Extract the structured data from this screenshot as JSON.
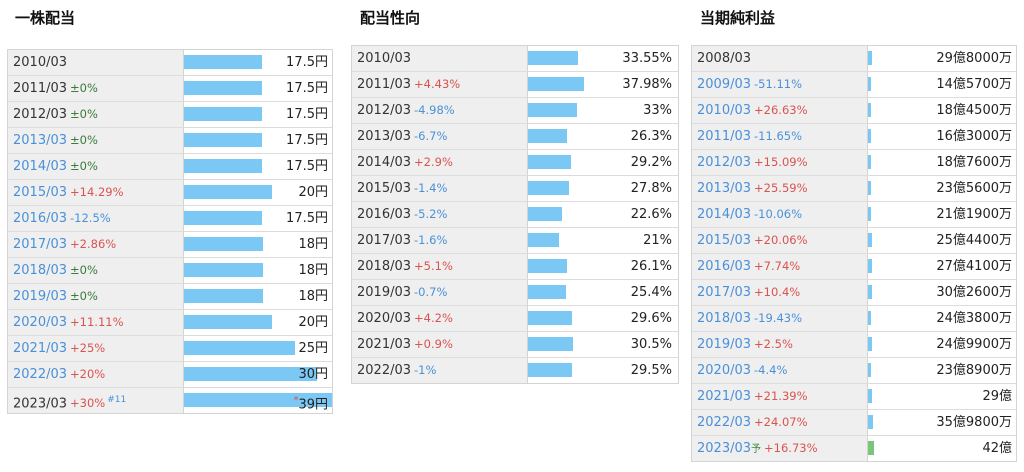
{
  "sections": {
    "dividend": {
      "title": "一株配当",
      "rows": [
        {
          "year": "2010/03",
          "change": "",
          "change_type": "",
          "value": "17.5円",
          "bar": 0.525,
          "link": false
        },
        {
          "year": "2011/03",
          "change": "±0%",
          "change_type": "zero",
          "value": "17.5円",
          "bar": 0.525,
          "link": false
        },
        {
          "year": "2012/03",
          "change": "±0%",
          "change_type": "zero",
          "value": "17.5円",
          "bar": 0.525,
          "link": false
        },
        {
          "year": "2013/03",
          "change": "±0%",
          "change_type": "zero",
          "value": "17.5円",
          "bar": 0.525,
          "link": true
        },
        {
          "year": "2014/03",
          "change": "±0%",
          "change_type": "zero",
          "value": "17.5円",
          "bar": 0.525,
          "link": true
        },
        {
          "year": "2015/03",
          "change": "+14.29%",
          "change_type": "pos",
          "value": "20円",
          "bar": 0.595,
          "link": true
        },
        {
          "year": "2016/03",
          "change": "-12.5%",
          "change_type": "neg",
          "value": "17.5円",
          "bar": 0.525,
          "link": true
        },
        {
          "year": "2017/03",
          "change": "+2.86%",
          "change_type": "pos",
          "value": "18円",
          "bar": 0.535,
          "link": true
        },
        {
          "year": "2018/03",
          "change": "±0%",
          "change_type": "zero",
          "value": "18円",
          "bar": 0.535,
          "link": true
        },
        {
          "year": "2019/03",
          "change": "±0%",
          "change_type": "zero",
          "value": "18円",
          "bar": 0.535,
          "link": true
        },
        {
          "year": "2020/03",
          "change": "+11.11%",
          "change_type": "pos",
          "value": "20円",
          "bar": 0.595,
          "link": true
        },
        {
          "year": "2021/03",
          "change": "+25%",
          "change_type": "pos",
          "value": "25円",
          "bar": 0.75,
          "link": true
        },
        {
          "year": "2022/03",
          "change": "+20%",
          "change_type": "pos",
          "value": "30円",
          "bar": 0.9,
          "link": true
        },
        {
          "year": "2023/03",
          "change": "+30%",
          "change_type": "pos",
          "value": "39円",
          "bar": 1.0,
          "link": false,
          "note": "#11",
          "star": "*"
        }
      ]
    },
    "payout": {
      "title": "配当性向",
      "rows": [
        {
          "year": "2010/03",
          "change": "",
          "change_type": "",
          "value": "33.55%",
          "bar": 0.885,
          "link": false
        },
        {
          "year": "2011/03",
          "change": "+4.43%",
          "change_type": "pos",
          "value": "37.98%",
          "bar": 1.0,
          "link": false
        },
        {
          "year": "2012/03",
          "change": "-4.98%",
          "change_type": "neg",
          "value": "33%",
          "bar": 0.87,
          "link": false
        },
        {
          "year": "2013/03",
          "change": "-6.7%",
          "change_type": "neg",
          "value": "26.3%",
          "bar": 0.695,
          "link": false
        },
        {
          "year": "2014/03",
          "change": "+2.9%",
          "change_type": "pos",
          "value": "29.2%",
          "bar": 0.77,
          "link": false
        },
        {
          "year": "2015/03",
          "change": "-1.4%",
          "change_type": "neg",
          "value": "27.8%",
          "bar": 0.735,
          "link": false
        },
        {
          "year": "2016/03",
          "change": "-5.2%",
          "change_type": "neg",
          "value": "22.6%",
          "bar": 0.6,
          "link": false
        },
        {
          "year": "2017/03",
          "change": "-1.6%",
          "change_type": "neg",
          "value": "21%",
          "bar": 0.555,
          "link": false
        },
        {
          "year": "2018/03",
          "change": "+5.1%",
          "change_type": "pos",
          "value": "26.1%",
          "bar": 0.69,
          "link": false
        },
        {
          "year": "2019/03",
          "change": "-0.7%",
          "change_type": "neg",
          "value": "25.4%",
          "bar": 0.67,
          "link": false
        },
        {
          "year": "2020/03",
          "change": "+4.2%",
          "change_type": "pos",
          "value": "29.6%",
          "bar": 0.78,
          "link": false
        },
        {
          "year": "2021/03",
          "change": "+0.9%",
          "change_type": "pos",
          "value": "30.5%",
          "bar": 0.805,
          "link": false
        },
        {
          "year": "2022/03",
          "change": "-1%",
          "change_type": "neg",
          "value": "29.5%",
          "bar": 0.78,
          "link": false
        }
      ]
    },
    "netincome": {
      "title": "当期純利益",
      "rows": [
        {
          "year": "2008/03",
          "change": "",
          "change_type": "",
          "value": "29億8000万",
          "bar": 0.71,
          "link": false
        },
        {
          "year": "2009/03",
          "change": "-51.11%",
          "change_type": "neg",
          "value": "14億5700万",
          "bar": 0.35,
          "link": true
        },
        {
          "year": "2010/03",
          "change": "+26.63%",
          "change_type": "pos",
          "value": "18億4500万",
          "bar": 0.44,
          "link": true
        },
        {
          "year": "2011/03",
          "change": "-11.65%",
          "change_type": "neg",
          "value": "16億3000万",
          "bar": 0.39,
          "link": true
        },
        {
          "year": "2012/03",
          "change": "+15.09%",
          "change_type": "pos",
          "value": "18億7600万",
          "bar": 0.45,
          "link": true
        },
        {
          "year": "2013/03",
          "change": "+25.59%",
          "change_type": "pos",
          "value": "23億5600万",
          "bar": 0.56,
          "link": true
        },
        {
          "year": "2014/03",
          "change": "-10.06%",
          "change_type": "neg",
          "value": "21億1900万",
          "bar": 0.5,
          "link": true
        },
        {
          "year": "2015/03",
          "change": "+20.06%",
          "change_type": "pos",
          "value": "25億4400万",
          "bar": 0.61,
          "link": true
        },
        {
          "year": "2016/03",
          "change": "+7.74%",
          "change_type": "pos",
          "value": "27億4100万",
          "bar": 0.65,
          "link": true
        },
        {
          "year": "2017/03",
          "change": "+10.4%",
          "change_type": "pos",
          "value": "30億2600万",
          "bar": 0.72,
          "link": true
        },
        {
          "year": "2018/03",
          "change": "-19.43%",
          "change_type": "neg",
          "value": "24億3800万",
          "bar": 0.58,
          "link": true
        },
        {
          "year": "2019/03",
          "change": "+2.5%",
          "change_type": "pos",
          "value": "24億9900万",
          "bar": 0.6,
          "link": true
        },
        {
          "year": "2020/03",
          "change": "-4.4%",
          "change_type": "neg",
          "value": "23億8900万",
          "bar": 0.57,
          "link": true
        },
        {
          "year": "2021/03",
          "change": "+21.39%",
          "change_type": "pos",
          "value": "29億",
          "bar": 0.69,
          "link": true
        },
        {
          "year": "2022/03",
          "change": "+24.07%",
          "change_type": "pos",
          "value": "35億9800万",
          "bar": 0.86,
          "link": true
        },
        {
          "year": "2023/03",
          "change": "+16.73%",
          "change_type": "pos",
          "value": "42億",
          "bar": 1.0,
          "link": true,
          "pred": "予",
          "green": true
        }
      ]
    }
  }
}
